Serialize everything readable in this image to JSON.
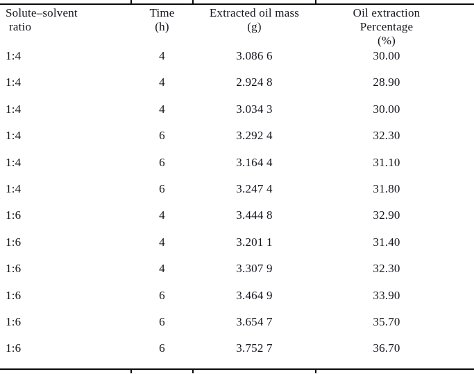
{
  "table": {
    "ink_color": "#15151d",
    "rule_color": "#0a0a0a",
    "columns": [
      {
        "id": "ratio",
        "lines": [
          "Solute–solvent",
          "ratio"
        ]
      },
      {
        "id": "time",
        "lines": [
          "Time",
          "(h)"
        ]
      },
      {
        "id": "mass",
        "lines": [
          "Extracted oil mass",
          "(g)"
        ]
      },
      {
        "id": "percentage",
        "lines": [
          "Oil extraction",
          "Percentage",
          "(%)"
        ]
      }
    ],
    "rows": [
      [
        "1:4",
        "4",
        "3.086 6",
        "30.00"
      ],
      [
        "1:4",
        "4",
        "2.924 8",
        "28.90"
      ],
      [
        "1:4",
        "4",
        "3.034 3",
        "30.00"
      ],
      [
        "1:4",
        "6",
        "3.292 4",
        "32.30"
      ],
      [
        "1:4",
        "6",
        "3.164 4",
        "31.10"
      ],
      [
        "1:4",
        "6",
        "3.247 4",
        "31.80"
      ],
      [
        "1:6",
        "4",
        "3.444 8",
        "32.90"
      ],
      [
        "1:6",
        "4",
        "3.201 1",
        "31.40"
      ],
      [
        "1:6",
        "4",
        "3.307 9",
        "32.30"
      ],
      [
        "1:6",
        "6",
        "3.464 9",
        "33.90"
      ],
      [
        "1:6",
        "6",
        "3.654 7",
        "35.70"
      ],
      [
        "1:6",
        "6",
        "3.752 7",
        "36.70"
      ]
    ]
  }
}
